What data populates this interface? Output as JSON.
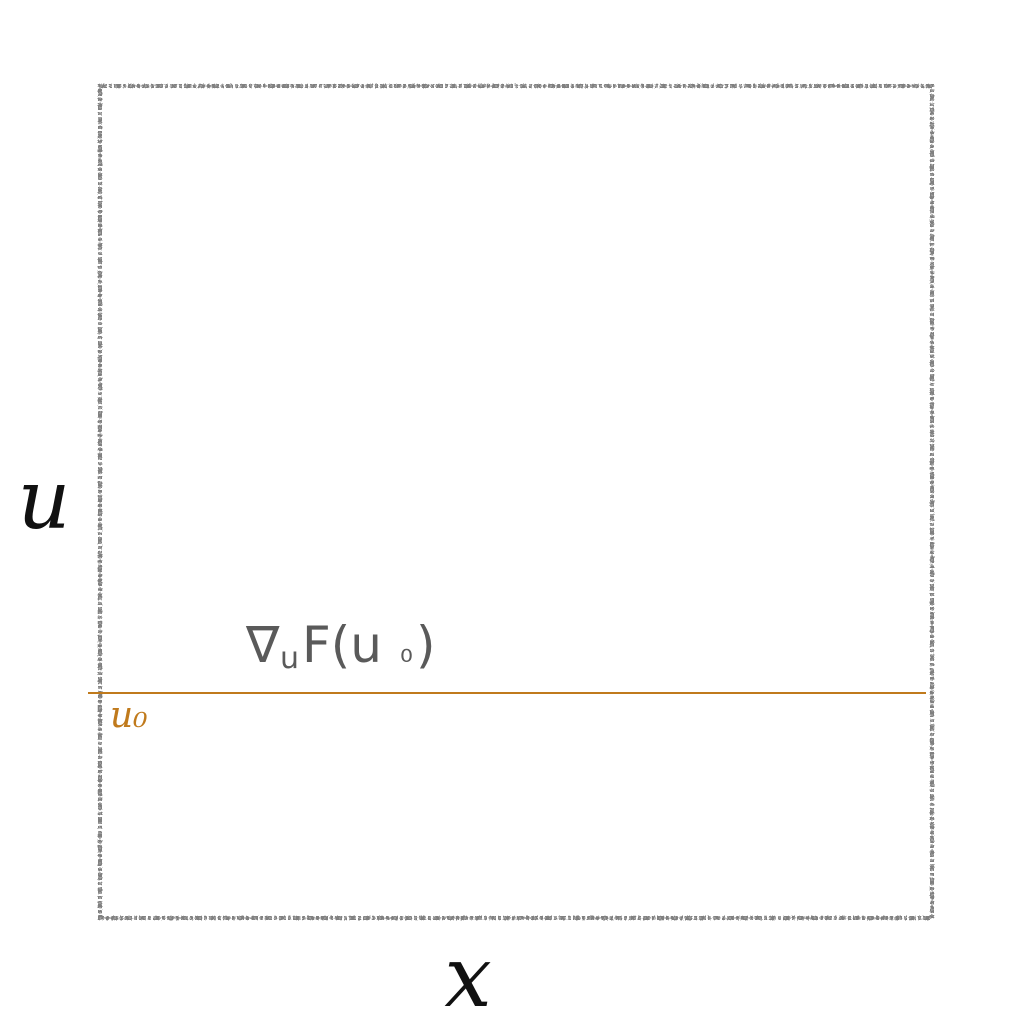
{
  "axes": {
    "x_label": "x",
    "y_label": "u"
  },
  "level_line": {
    "label": "u₀",
    "gradient_label": "∇uF(u₀)",
    "gradient_label_parts": {
      "nabla": "∇",
      "subscript": "u",
      "func": "F(u",
      "sub0": "₀",
      "close": ")"
    }
  },
  "colors": {
    "frame": "#7a7a7a",
    "level_line": "#c07a1c",
    "label_text": "#111111",
    "gradient_text": "#5a5a5a"
  }
}
